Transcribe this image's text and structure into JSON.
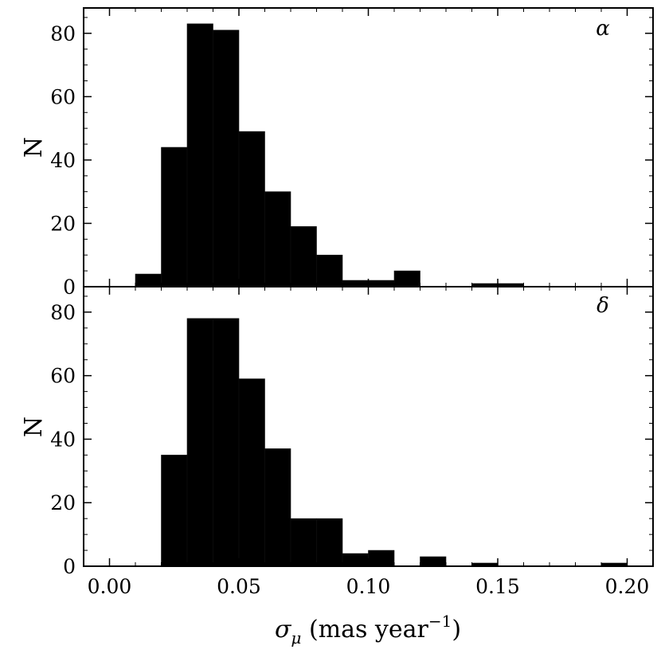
{
  "chart_data": [
    {
      "type": "bar",
      "panel_label": "α",
      "ylabel": "N",
      "xlim": [
        -0.01,
        0.21
      ],
      "ylim": [
        0,
        88
      ],
      "yticks": [
        0,
        20,
        40,
        60,
        80
      ],
      "bin_width": 0.01,
      "bins": [
        {
          "x": 0.01,
          "count": 4
        },
        {
          "x": 0.02,
          "count": 44
        },
        {
          "x": 0.03,
          "count": 83
        },
        {
          "x": 0.04,
          "count": 81
        },
        {
          "x": 0.05,
          "count": 49
        },
        {
          "x": 0.06,
          "count": 30
        },
        {
          "x": 0.07,
          "count": 19
        },
        {
          "x": 0.08,
          "count": 10
        },
        {
          "x": 0.09,
          "count": 2
        },
        {
          "x": 0.1,
          "count": 2
        },
        {
          "x": 0.11,
          "count": 5
        },
        {
          "x": 0.14,
          "count": 1
        },
        {
          "x": 0.15,
          "count": 1
        }
      ],
      "color": "#000000"
    },
    {
      "type": "bar",
      "panel_label": "δ",
      "ylabel": "N",
      "xlabel": "σμ (mas year−1)",
      "xlim": [
        -0.01,
        0.21
      ],
      "ylim": [
        0,
        88
      ],
      "yticks": [
        0,
        20,
        40,
        60,
        80
      ],
      "xticks": [
        "0.00",
        "0.05",
        "0.10",
        "0.15",
        "0.20"
      ],
      "bin_width": 0.01,
      "bins": [
        {
          "x": 0.02,
          "count": 35
        },
        {
          "x": 0.03,
          "count": 78
        },
        {
          "x": 0.04,
          "count": 78
        },
        {
          "x": 0.05,
          "count": 59
        },
        {
          "x": 0.06,
          "count": 37
        },
        {
          "x": 0.07,
          "count": 15
        },
        {
          "x": 0.08,
          "count": 15
        },
        {
          "x": 0.09,
          "count": 4
        },
        {
          "x": 0.1,
          "count": 5
        },
        {
          "x": 0.12,
          "count": 3
        },
        {
          "x": 0.14,
          "count": 1
        },
        {
          "x": 0.19,
          "count": 1
        }
      ],
      "color": "#000000"
    }
  ],
  "labels": {
    "top_ylabel": "N",
    "bottom_ylabel": "N",
    "top_panel_tag": "α",
    "bottom_panel_tag": "δ",
    "xlabel_symbol": "σ",
    "xlabel_subscript": "μ",
    "xlabel_text": " (mas year",
    "xlabel_superscript": "−1",
    "xlabel_close": ")"
  }
}
